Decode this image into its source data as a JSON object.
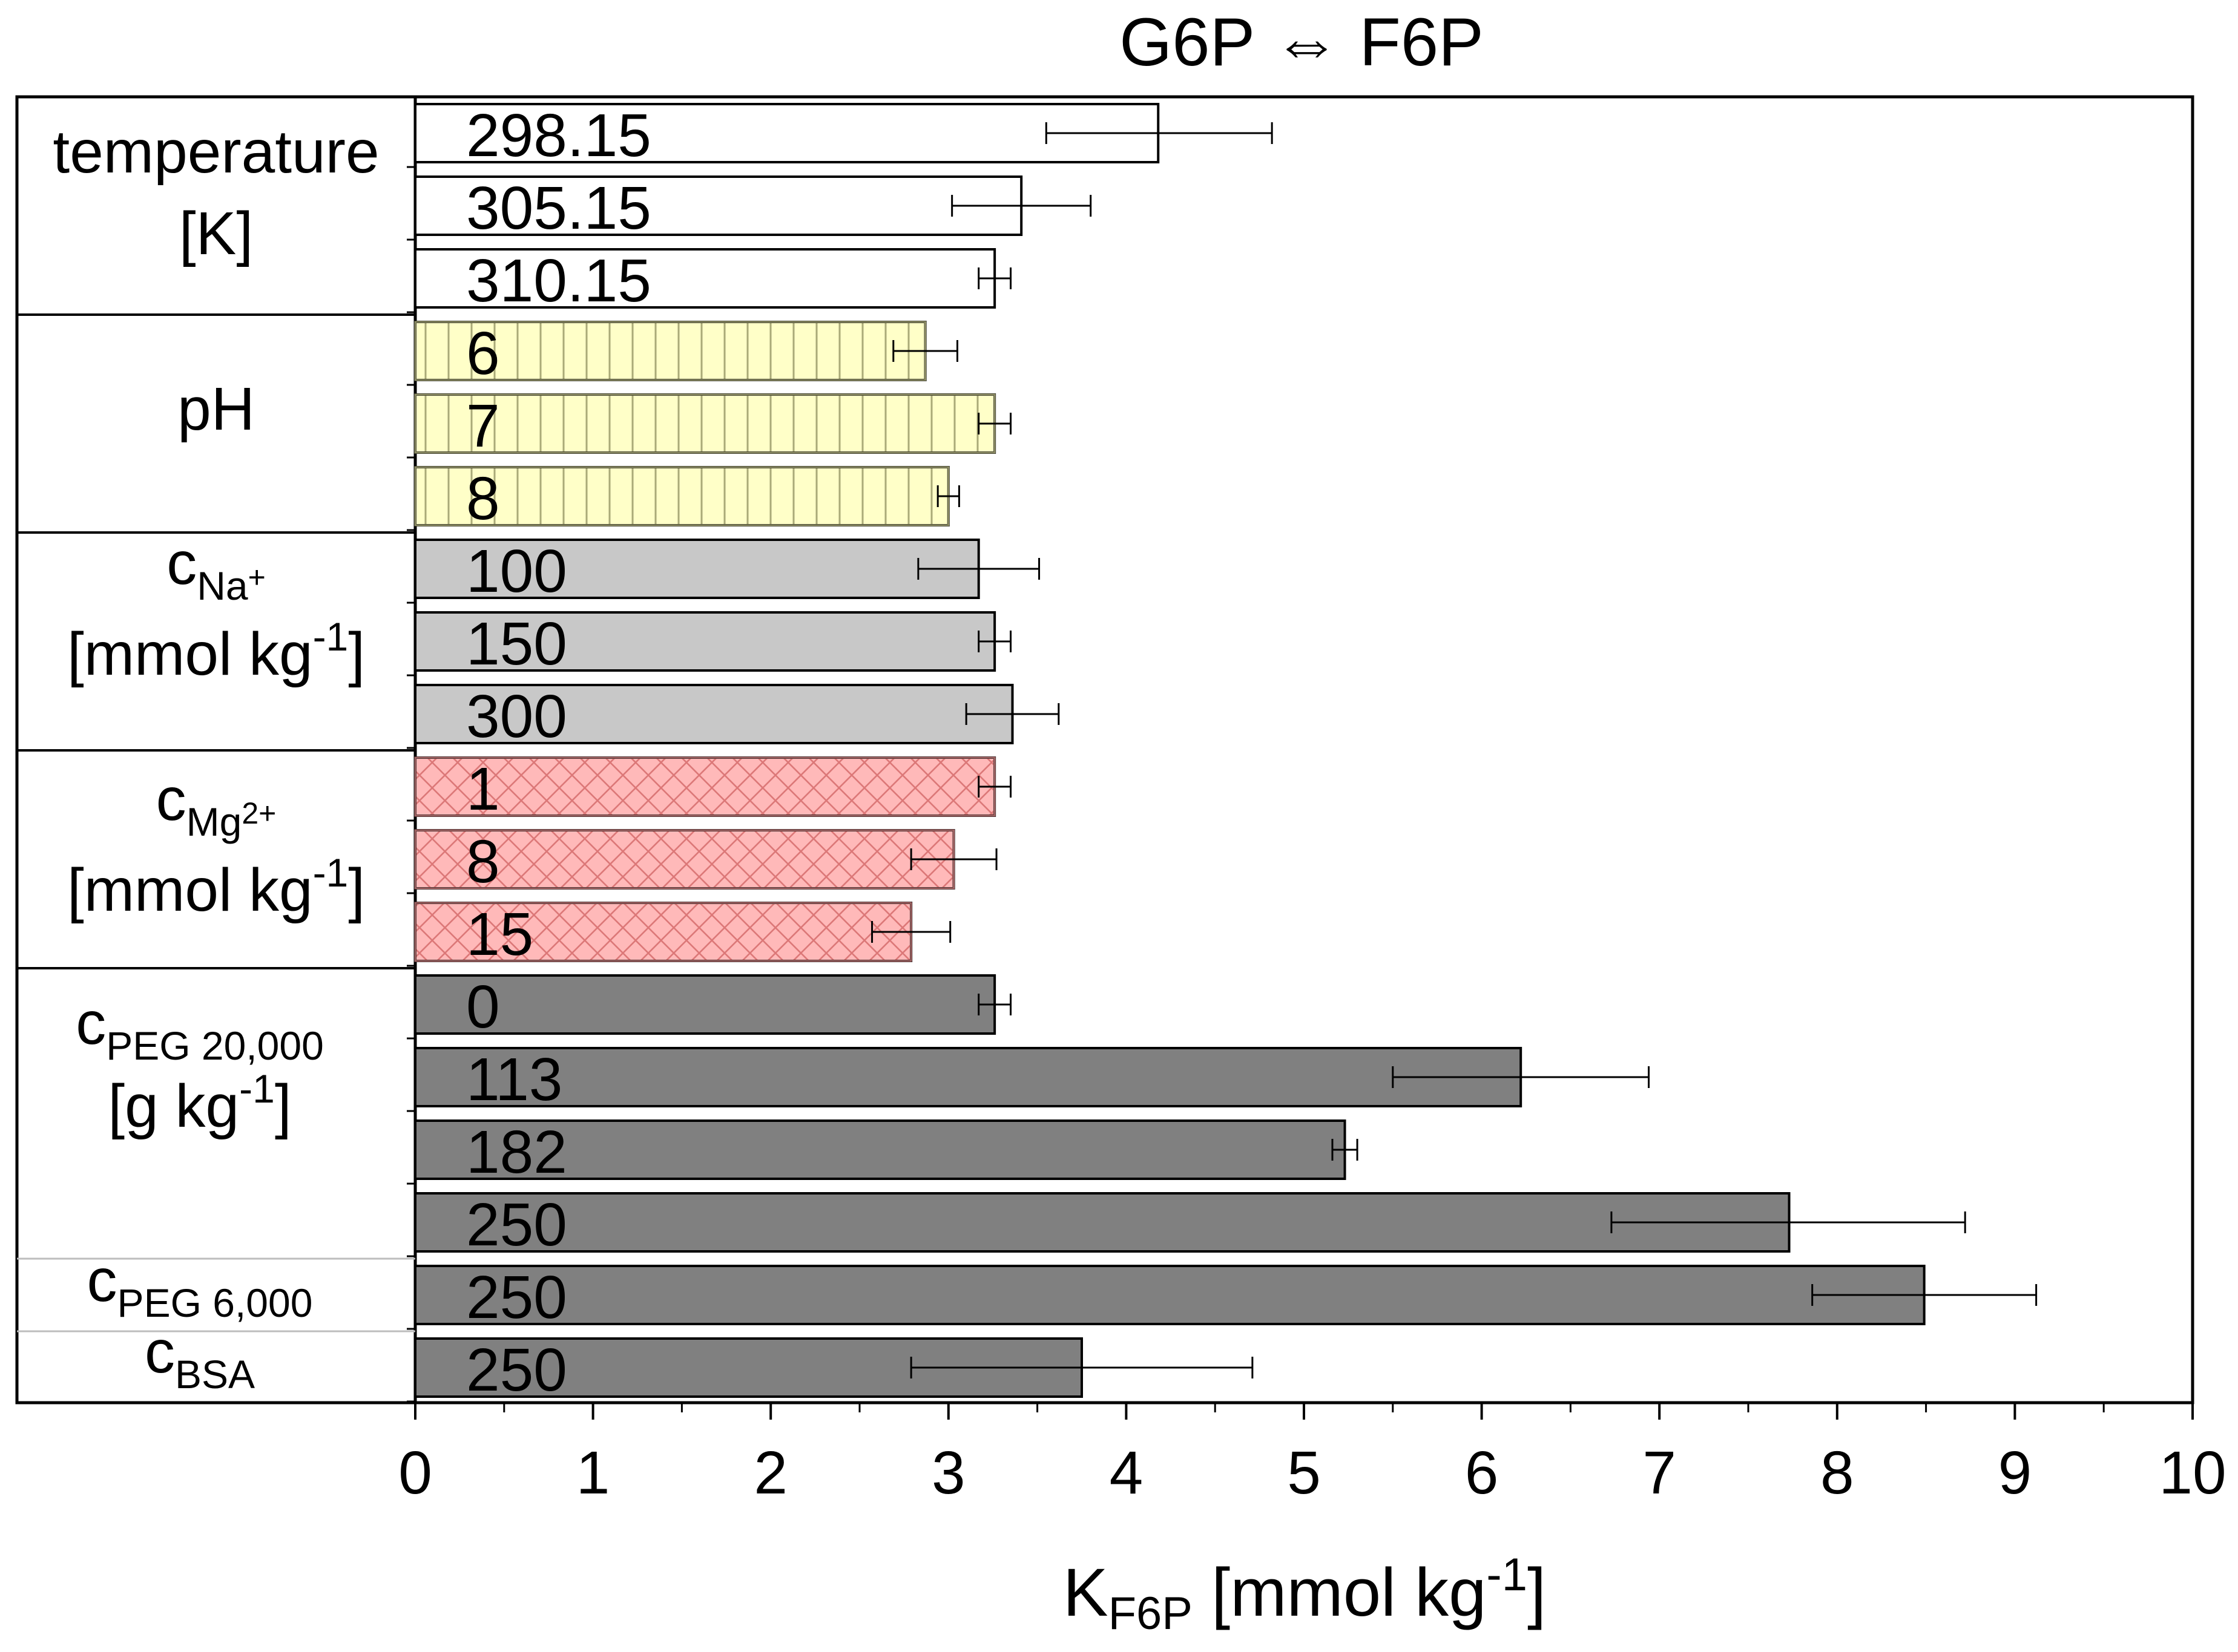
{
  "chart_data": {
    "type": "bar",
    "orientation": "horizontal",
    "title": "G6P ⇔ F6P",
    "xlabel": {
      "main": "K",
      "sub": "F6P",
      "unit": " [mmol kg",
      "sup": "-1",
      "close": "]"
    },
    "xlim": [
      0,
      10
    ],
    "xticks": [
      "0",
      "1",
      "2",
      "3",
      "4",
      "5",
      "6",
      "7",
      "8",
      "9",
      "10"
    ],
    "colors": {
      "temperature": "#ffffff",
      "ph": "#ffffc8",
      "na": "#c8c8c8",
      "mg": "#ffb9b9",
      "peg": "#808080",
      "hatch_ph": "#aaaa78",
      "hatch_mg": "#dc7878"
    },
    "groups": [
      {
        "id": "temperature",
        "style": "temperature",
        "label_lines": [
          {
            "parts": [
              {
                "t": "temperature",
                "k": "n"
              }
            ]
          },
          {
            "parts": [
              {
                "t": "[K]",
                "k": "n"
              }
            ]
          }
        ],
        "bars": [
          {
            "label": "298.15",
            "value": 4.18,
            "err": [
              3.55,
              4.82
            ]
          },
          {
            "label": "305.15",
            "value": 3.41,
            "err": [
              3.02,
              3.8
            ]
          },
          {
            "label": "310.15",
            "value": 3.26,
            "err": [
              3.17,
              3.35
            ]
          }
        ]
      },
      {
        "id": "ph",
        "style": "ph",
        "label_lines": [
          {
            "parts": [
              {
                "t": "pH",
                "k": "n"
              }
            ]
          }
        ],
        "bars": [
          {
            "label": "6",
            "value": 2.87,
            "err": [
              2.69,
              3.05
            ]
          },
          {
            "label": "7",
            "value": 3.26,
            "err": [
              3.17,
              3.35
            ]
          },
          {
            "label": "8",
            "value": 3.0,
            "err": [
              2.94,
              3.06
            ]
          }
        ]
      },
      {
        "id": "na",
        "style": "na",
        "label_lines": [
          {
            "parts": [
              {
                "t": "c",
                "k": "n"
              },
              {
                "t": "Na",
                "k": "sub"
              },
              {
                "t": "+",
                "k": "supsub"
              }
            ]
          },
          {
            "parts": [
              {
                "t": "[mmol kg",
                "k": "n"
              },
              {
                "t": "-1",
                "k": "sup"
              },
              {
                "t": "]",
                "k": "n"
              }
            ]
          }
        ],
        "bars": [
          {
            "label": "100",
            "value": 3.17,
            "err": [
              2.83,
              3.51
            ]
          },
          {
            "label": "150",
            "value": 3.26,
            "err": [
              3.17,
              3.35
            ]
          },
          {
            "label": "300",
            "value": 3.36,
            "err": [
              3.1,
              3.62
            ]
          }
        ]
      },
      {
        "id": "mg",
        "style": "mg",
        "label_lines": [
          {
            "parts": [
              {
                "t": "c",
                "k": "n"
              },
              {
                "t": "Mg",
                "k": "sub"
              },
              {
                "t": "2+",
                "k": "supsub"
              }
            ]
          },
          {
            "parts": [
              {
                "t": "[mmol kg",
                "k": "n"
              },
              {
                "t": "-1",
                "k": "sup"
              },
              {
                "t": "]",
                "k": "n"
              }
            ]
          }
        ],
        "bars": [
          {
            "label": "1",
            "value": 3.26,
            "err": [
              3.17,
              3.35
            ]
          },
          {
            "label": "8",
            "value": 3.03,
            "err": [
              2.79,
              3.27
            ]
          },
          {
            "label": "15",
            "value": 2.79,
            "err": [
              2.57,
              3.01
            ]
          }
        ]
      },
      {
        "id": "peg20000",
        "style": "peg",
        "label_lines": [
          {
            "parts": [
              {
                "t": "c",
                "k": "n"
              },
              {
                "t": "PEG 20,000",
                "k": "sub"
              }
            ]
          },
          {
            "parts": [
              {
                "t": "[g kg",
                "k": "n"
              },
              {
                "t": "-1",
                "k": "sup"
              },
              {
                "t": "]",
                "k": "n"
              }
            ]
          }
        ],
        "bars": [
          {
            "label": "0",
            "value": 3.26,
            "err": [
              3.17,
              3.35
            ]
          },
          {
            "label": "113",
            "value": 6.22,
            "err": [
              5.5,
              6.94
            ]
          },
          {
            "label": "182",
            "value": 5.23,
            "err": [
              5.16,
              5.3
            ]
          },
          {
            "label": "250",
            "value": 7.73,
            "err": [
              6.73,
              8.72
            ]
          }
        ]
      },
      {
        "id": "peg6000",
        "style": "peg",
        "label_lines": [
          {
            "parts": [
              {
                "t": "c",
                "k": "n"
              },
              {
                "t": "PEG 6,000",
                "k": "sub"
              }
            ]
          }
        ],
        "bars": [
          {
            "label": "250",
            "value": 8.49,
            "err": [
              7.86,
              9.12
            ]
          }
        ]
      },
      {
        "id": "bsa",
        "style": "peg",
        "label_lines": [
          {
            "parts": [
              {
                "t": "c",
                "k": "n"
              },
              {
                "t": "BSA",
                "k": "sub"
              }
            ]
          }
        ],
        "bars": [
          {
            "label": "250",
            "value": 3.75,
            "err": [
              2.79,
              4.71
            ]
          }
        ]
      }
    ]
  }
}
